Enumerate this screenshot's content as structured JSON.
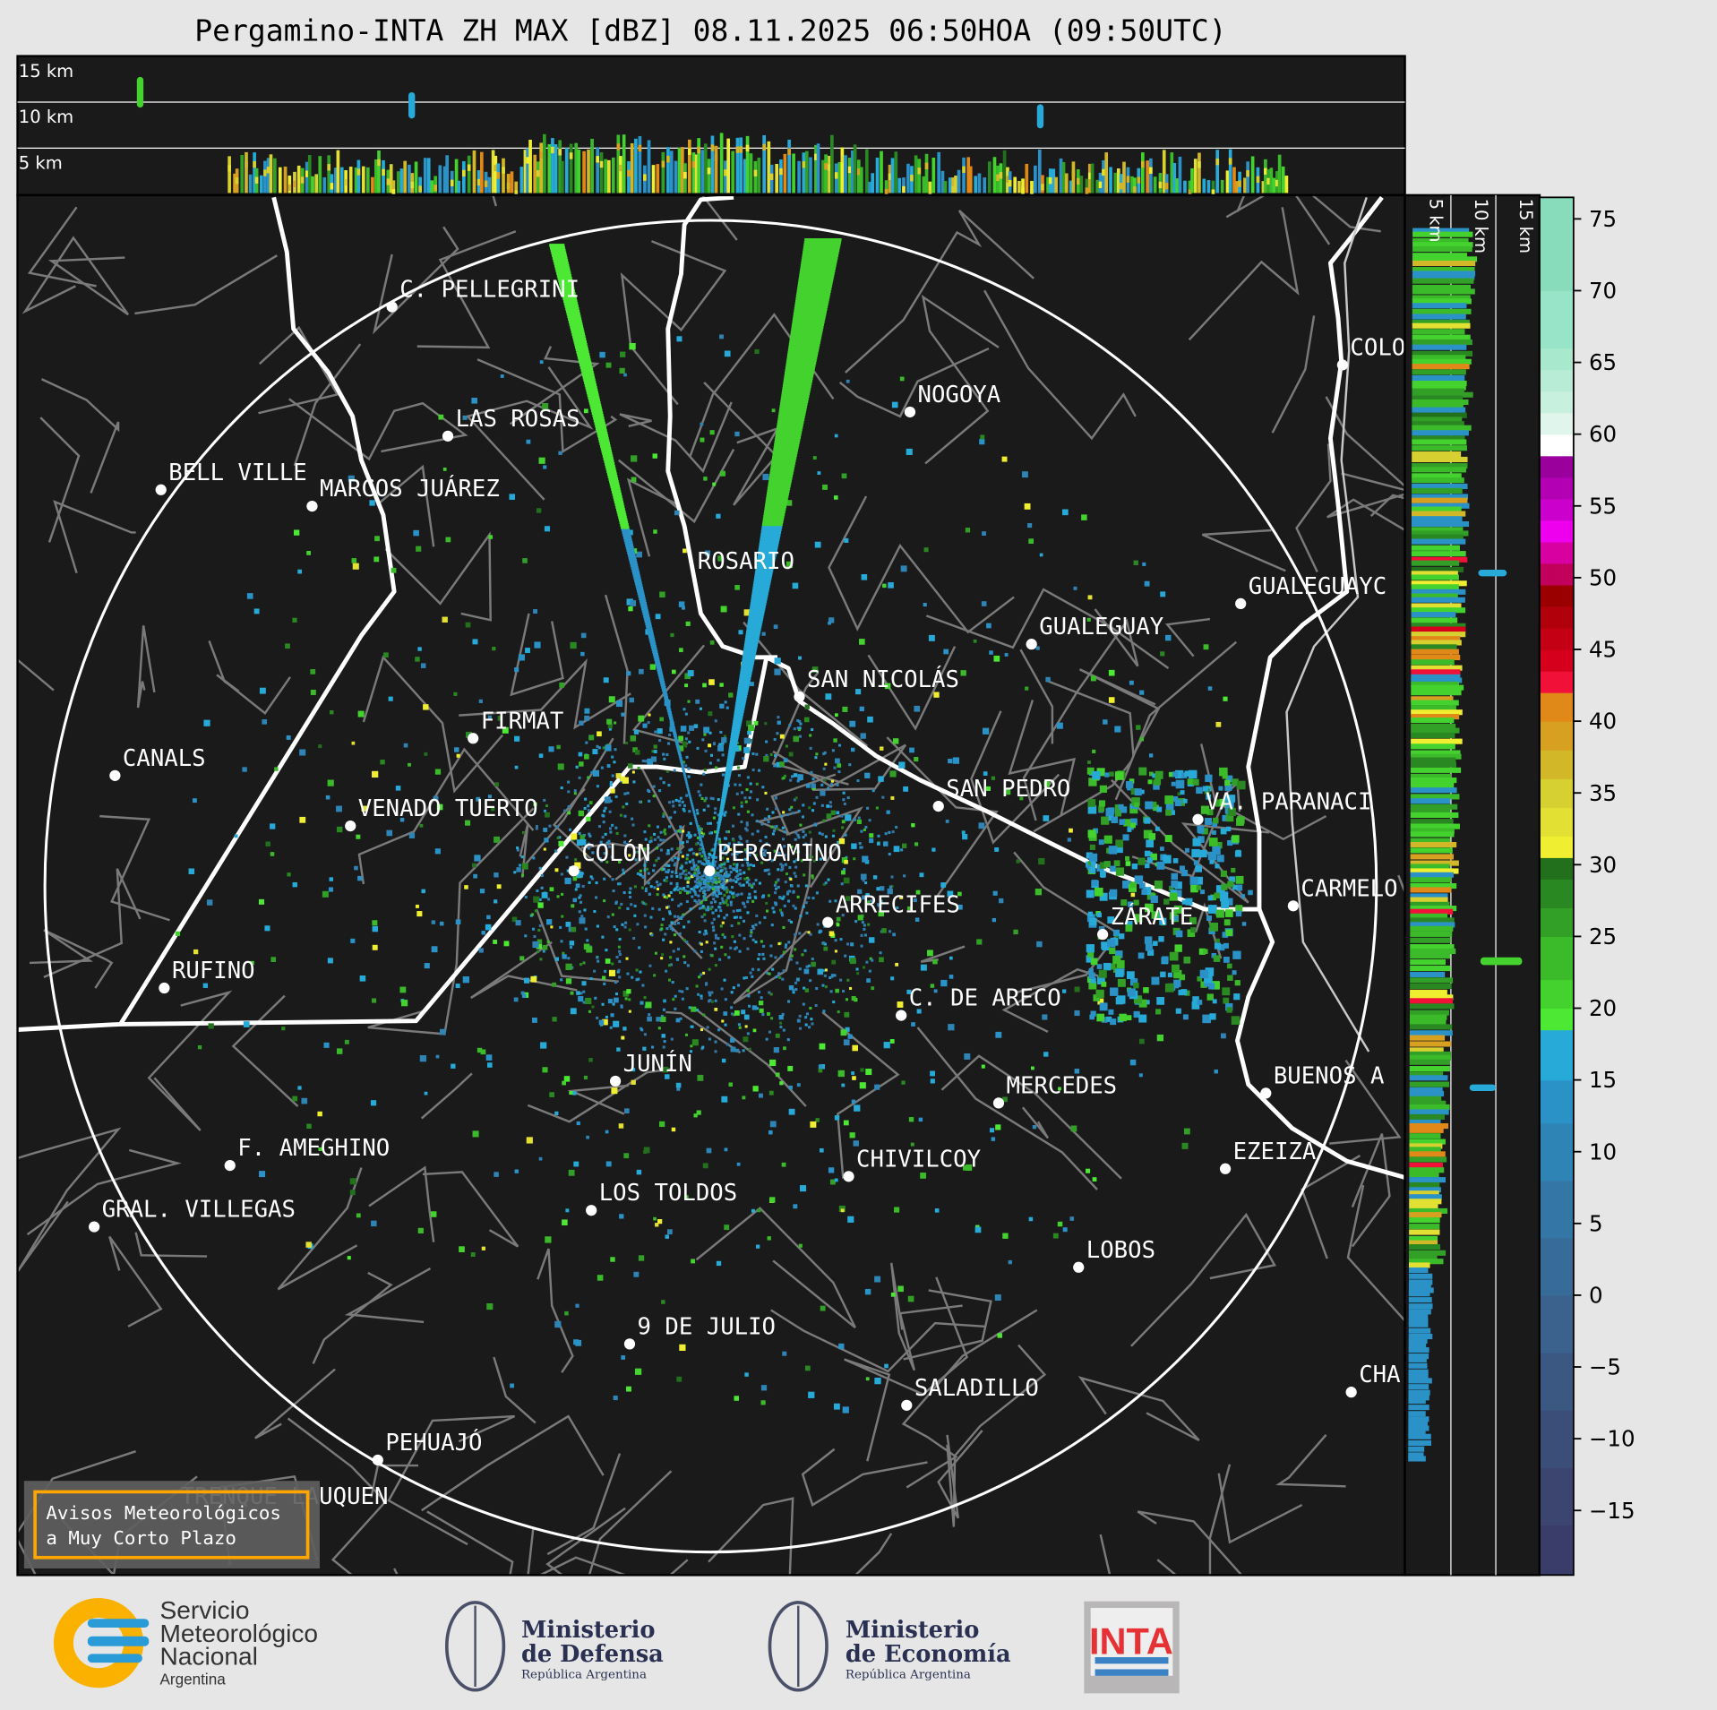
{
  "title": "Pergamino-INTA ZH MAX [dBZ] 08.11.2025 06:50HOA (09:50UTC)",
  "top_panel": {
    "height_labels": [
      "15 km",
      "10 km",
      "5 km"
    ]
  },
  "right_panel": {
    "height_labels": [
      "5 km",
      "10 km",
      "15 km"
    ]
  },
  "colorbar": {
    "range": [
      -19.5,
      76.5
    ],
    "ticks": [
      "75",
      "70",
      "65",
      "60",
      "55",
      "50",
      "45",
      "40",
      "35",
      "30",
      "25",
      "20",
      "15",
      "10",
      "5",
      "0",
      "−5",
      "−10",
      "−15"
    ],
    "tick_values": [
      75,
      70,
      65,
      60,
      55,
      50,
      45,
      40,
      35,
      30,
      25,
      20,
      15,
      10,
      5,
      0,
      -5,
      -10,
      -15
    ],
    "bands": [
      {
        "from": -19.5,
        "to": -16,
        "color": "#3a3d6a"
      },
      {
        "from": -16,
        "to": -12,
        "color": "#3b456f"
      },
      {
        "from": -12,
        "to": -8,
        "color": "#3b4e78"
      },
      {
        "from": -8,
        "to": -4,
        "color": "#3b5882"
      },
      {
        "from": -4,
        "to": 0,
        "color": "#3a628d"
      },
      {
        "from": 0,
        "to": 4,
        "color": "#386c98"
      },
      {
        "from": 4,
        "to": 8,
        "color": "#3477a6"
      },
      {
        "from": 8,
        "to": 12,
        "color": "#2f84b6"
      },
      {
        "from": 12,
        "to": 15,
        "color": "#2a92c6"
      },
      {
        "from": 15,
        "to": 18.5,
        "color": "#27aad8"
      },
      {
        "from": 18.5,
        "to": 20,
        "color": "#4ce834"
      },
      {
        "from": 20,
        "to": 22,
        "color": "#44d22e"
      },
      {
        "from": 22,
        "to": 25,
        "color": "#3cbb2a"
      },
      {
        "from": 25,
        "to": 27,
        "color": "#32a026"
      },
      {
        "from": 27,
        "to": 29,
        "color": "#2a8822"
      },
      {
        "from": 29,
        "to": 30.5,
        "color": "#22701c"
      },
      {
        "from": 30.5,
        "to": 32,
        "color": "#f0ee30"
      },
      {
        "from": 32,
        "to": 34,
        "color": "#e3e034"
      },
      {
        "from": 34,
        "to": 36,
        "color": "#d6d030"
      },
      {
        "from": 36,
        "to": 38,
        "color": "#d2b828"
      },
      {
        "from": 38,
        "to": 40,
        "color": "#d8a020"
      },
      {
        "from": 40,
        "to": 42,
        "color": "#e08818"
      },
      {
        "from": 42,
        "to": 43.5,
        "color": "#f01038"
      },
      {
        "from": 43.5,
        "to": 45,
        "color": "#d4001c"
      },
      {
        "from": 45,
        "to": 46.5,
        "color": "#c40014"
      },
      {
        "from": 46.5,
        "to": 48,
        "color": "#b0000c"
      },
      {
        "from": 48,
        "to": 49.5,
        "color": "#9a0000"
      },
      {
        "from": 49.5,
        "to": 51,
        "color": "#c0005a"
      },
      {
        "from": 51,
        "to": 52.5,
        "color": "#d800a0"
      },
      {
        "from": 52.5,
        "to": 54,
        "color": "#ee00ee"
      },
      {
        "from": 54,
        "to": 55.5,
        "color": "#cc00cc"
      },
      {
        "from": 55.5,
        "to": 57,
        "color": "#b400b4"
      },
      {
        "from": 57,
        "to": 58.5,
        "color": "#9a009c"
      },
      {
        "from": 58.5,
        "to": 60,
        "color": "#ffffff"
      },
      {
        "from": 60,
        "to": 61.5,
        "color": "#e0f5ec"
      },
      {
        "from": 61.5,
        "to": 63,
        "color": "#c8f0de"
      },
      {
        "from": 63,
        "to": 64.5,
        "color": "#b8ecd6"
      },
      {
        "from": 64.5,
        "to": 66,
        "color": "#a8e8cc"
      },
      {
        "from": 66,
        "to": 70,
        "color": "#98e4c8"
      },
      {
        "from": 70,
        "to": 76.5,
        "color": "#88dcbc"
      }
    ]
  },
  "map": {
    "radar_site": "PERGAMINO",
    "cities": [
      {
        "name": "C. PELLEGRINI"
      },
      {
        "name": "LAS ROSAS"
      },
      {
        "name": "BELL VILLE"
      },
      {
        "name": "MARCOS JUÁREZ"
      },
      {
        "name": "ROSARIO"
      },
      {
        "name": "NOGOYA"
      },
      {
        "name": "GUALEGUAY"
      },
      {
        "name": "GUALEGUAYC"
      },
      {
        "name": "COLO"
      },
      {
        "name": "SAN NICOLÁS"
      },
      {
        "name": "FIRMAT"
      },
      {
        "name": "CANALS"
      },
      {
        "name": "SAN PEDRO"
      },
      {
        "name": "VENADO TUERTO"
      },
      {
        "name": "VA. PARANACI"
      },
      {
        "name": "COLÓN"
      },
      {
        "name": "PERGAMINO"
      },
      {
        "name": "ARRECIFES"
      },
      {
        "name": "CARMELO"
      },
      {
        "name": "ZÁRATE"
      },
      {
        "name": "RUFINO"
      },
      {
        "name": "C. DE ARECO"
      },
      {
        "name": "JUNÍN"
      },
      {
        "name": "BUENOS A"
      },
      {
        "name": "MERCEDES"
      },
      {
        "name": "F. AMEGHINO"
      },
      {
        "name": "CHIVILCOY"
      },
      {
        "name": "EZEIZA"
      },
      {
        "name": "LOS TOLDOS"
      },
      {
        "name": "GRAL. VILLEGAS"
      },
      {
        "name": "LOBOS"
      },
      {
        "name": "9 DE JULIO"
      },
      {
        "name": "CHA"
      },
      {
        "name": "SALADILLO"
      },
      {
        "name": "PEHUAJÓ"
      },
      {
        "name": "TRENQUE LAUQUEN"
      }
    ]
  },
  "alert_box": {
    "line1": "Avisos Meteorológicos",
    "line2": "a Muy Corto Plazo",
    "border_color": "#ffa500"
  },
  "logos": {
    "smn": {
      "line1": "Servicio",
      "line2": "Meteorológico",
      "line3": "Nacional",
      "line4": "Argentina"
    },
    "defensa": {
      "line1": "Ministerio",
      "line2": "de Defensa",
      "line3": "República Argentina"
    },
    "economia": {
      "line1": "Ministerio",
      "line2": "de Economía",
      "line3": "República Argentina"
    },
    "inta": {
      "text": "INTA"
    }
  }
}
